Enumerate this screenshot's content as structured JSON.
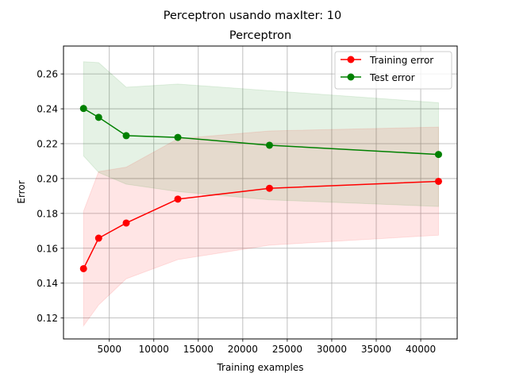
{
  "chart_data": {
    "type": "line",
    "suptitle": "Perceptron usando maxIter: 10",
    "title": "Perceptron",
    "xlabel": "Training examples",
    "ylabel": "Error",
    "xlim": [
      -150,
      44100
    ],
    "ylim": [
      0.108,
      0.276
    ],
    "xticks": [
      5000,
      10000,
      15000,
      20000,
      25000,
      30000,
      35000,
      40000
    ],
    "xtick_labels": [
      "5000",
      "10000",
      "15000",
      "20000",
      "25000",
      "30000",
      "35000",
      "40000"
    ],
    "yticks": [
      0.12,
      0.14,
      0.16,
      0.18,
      0.2,
      0.22,
      0.24,
      0.26
    ],
    "ytick_labels": [
      "0.12",
      "0.14",
      "0.16",
      "0.18",
      "0.20",
      "0.22",
      "0.24",
      "0.26"
    ],
    "grid": true,
    "legend_position": "top-right",
    "x": [
      2100,
      3800,
      6900,
      12700,
      23000,
      42000
    ],
    "series": [
      {
        "name": "Training error",
        "color": "#ff0000",
        "fill_color": "#ff0000",
        "values": [
          0.1483,
          0.1658,
          0.1745,
          0.1882,
          0.1944,
          0.1984
        ],
        "lower": [
          0.1155,
          0.1275,
          0.1425,
          0.1535,
          0.1618,
          0.1675
        ],
        "upper": [
          0.1812,
          0.204,
          0.2065,
          0.2228,
          0.2273,
          0.2295
        ]
      },
      {
        "name": "Test error",
        "color": "#008000",
        "fill_color": "#008000",
        "values": [
          0.2402,
          0.2351,
          0.2246,
          0.2236,
          0.2191,
          0.2138
        ],
        "lower": [
          0.213,
          0.2035,
          0.1968,
          0.1925,
          0.1878,
          0.184
        ],
        "upper": [
          0.267,
          0.2665,
          0.2524,
          0.2542,
          0.2504,
          0.2435
        ]
      }
    ]
  }
}
